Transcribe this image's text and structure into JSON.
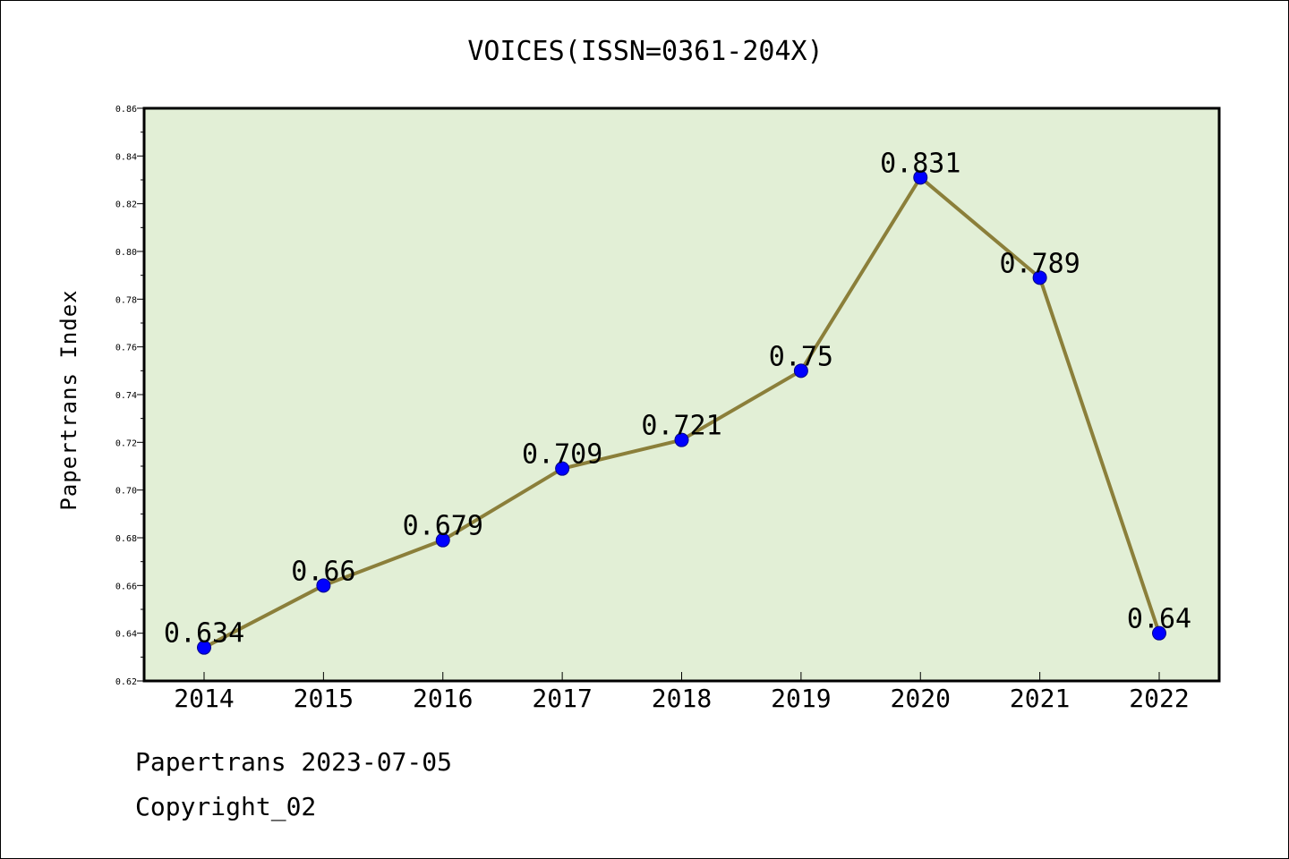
{
  "chart_data": {
    "type": "line",
    "title": "VOICES(ISSN=0361-204X)",
    "ylabel": "Papertrans Index",
    "xlabel": "",
    "categories": [
      "2014",
      "2015",
      "2016",
      "2017",
      "2018",
      "2019",
      "2020",
      "2021",
      "2022"
    ],
    "values": [
      0.634,
      0.66,
      0.679,
      0.709,
      0.721,
      0.75,
      0.831,
      0.789,
      0.64
    ],
    "value_labels": [
      "0.634",
      "0.66",
      "0.679",
      "0.709",
      "0.721",
      "0.75",
      "0.831",
      "0.789",
      "0.64"
    ],
    "ylim": [
      0.62,
      0.86
    ],
    "yticks": [
      "0.62",
      "0.64",
      "0.66",
      "0.68",
      "0.70",
      "0.72",
      "0.74",
      "0.76",
      "0.78",
      "0.80",
      "0.82",
      "0.84",
      "0.86"
    ],
    "grid": false,
    "colors": {
      "plot_background": "#e2efd6",
      "line": "#8b7f3a",
      "marker": "#0000ff"
    }
  },
  "footer": {
    "date_text": "Papertrans 2023-07-05",
    "copyright_text": "Copyright_02"
  }
}
